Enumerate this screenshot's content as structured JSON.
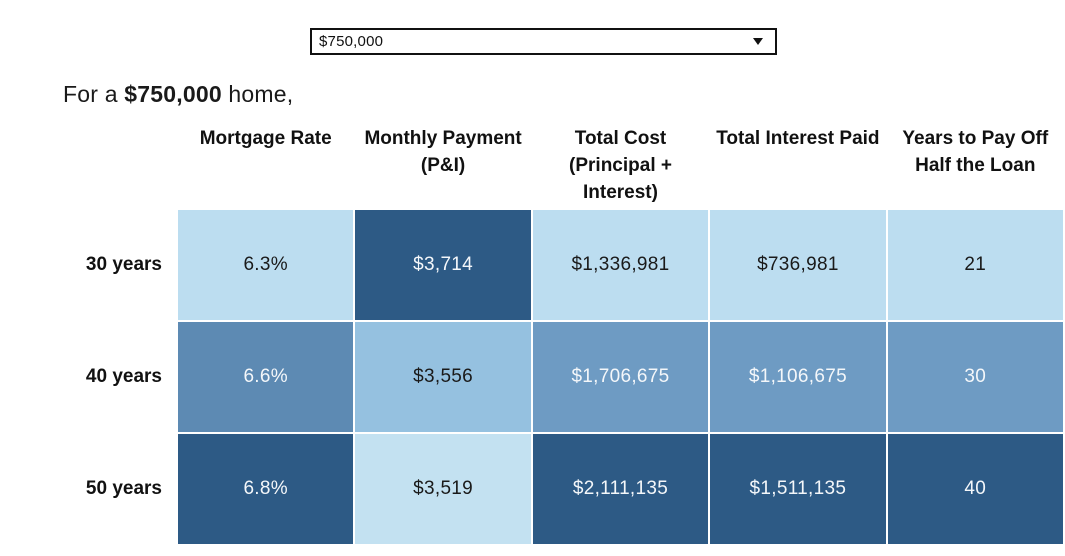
{
  "dropdown": {
    "value": "$750,000"
  },
  "heading": {
    "prefix": "For a ",
    "amount": "$750,000",
    "suffix": " home,"
  },
  "table": {
    "columns": [
      "Mortgage Rate",
      "Monthly Payment (P&I)",
      "Total Cost (Principal + Interest)",
      "Total Interest Paid",
      "Years to Pay Off Half the Loan"
    ],
    "rows": [
      {
        "label": "30 years",
        "cells": [
          {
            "value": "6.3%",
            "bg": "#bcddf0",
            "fg": "#1a1a1a"
          },
          {
            "value": "$3,714",
            "bg": "#2d5a85",
            "fg": "#f4f7fa"
          },
          {
            "value": "$1,336,981",
            "bg": "#bcddf0",
            "fg": "#1a1a1a"
          },
          {
            "value": "$736,981",
            "bg": "#bcddf0",
            "fg": "#1a1a1a"
          },
          {
            "value": "21",
            "bg": "#bcddf0",
            "fg": "#1a1a1a"
          }
        ]
      },
      {
        "label": "40 years",
        "cells": [
          {
            "value": "6.6%",
            "bg": "#5d8ab3",
            "fg": "#f4f7fa"
          },
          {
            "value": "$3,556",
            "bg": "#95c1e0",
            "fg": "#1a1a1a"
          },
          {
            "value": "$1,706,675",
            "bg": "#6e9bc3",
            "fg": "#f4f7fa"
          },
          {
            "value": "$1,106,675",
            "bg": "#6e9bc3",
            "fg": "#f4f7fa"
          },
          {
            "value": "30",
            "bg": "#6e9bc3",
            "fg": "#f4f7fa"
          }
        ]
      },
      {
        "label": "50 years",
        "cells": [
          {
            "value": "6.8%",
            "bg": "#2d5a85",
            "fg": "#f4f7fa"
          },
          {
            "value": "$3,519",
            "bg": "#c3e1f1",
            "fg": "#1a1a1a"
          },
          {
            "value": "$2,111,135",
            "bg": "#2d5a85",
            "fg": "#f4f7fa"
          },
          {
            "value": "$1,511,135",
            "bg": "#2d5a85",
            "fg": "#f4f7fa"
          },
          {
            "value": "40",
            "bg": "#2d5a85",
            "fg": "#f4f7fa"
          }
        ]
      }
    ]
  },
  "colors": {
    "cell_light": "#bcddf0",
    "cell_medium": "#6e9bc3",
    "cell_dark": "#2d5a85",
    "border": "#111111",
    "background": "#ffffff"
  }
}
